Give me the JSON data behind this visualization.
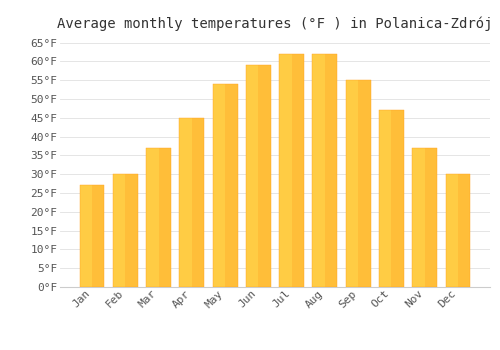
{
  "title": "Average monthly temperatures (°F ) in Polanica-Zdrój",
  "months": [
    "Jan",
    "Feb",
    "Mar",
    "Apr",
    "May",
    "Jun",
    "Jul",
    "Aug",
    "Sep",
    "Oct",
    "Nov",
    "Dec"
  ],
  "values": [
    27,
    30,
    37,
    45,
    54,
    59,
    62,
    62,
    55,
    47,
    37,
    30
  ],
  "bar_color_light": "#FFCC44",
  "bar_color_dark": "#FFA020",
  "ylim": [
    0,
    67
  ],
  "yticks": [
    0,
    5,
    10,
    15,
    20,
    25,
    30,
    35,
    40,
    45,
    50,
    55,
    60,
    65
  ],
  "ytick_labels": [
    "0°F",
    "5°F",
    "10°F",
    "15°F",
    "20°F",
    "25°F",
    "30°F",
    "35°F",
    "40°F",
    "45°F",
    "50°F",
    "55°F",
    "60°F",
    "65°F"
  ],
  "background_color": "#ffffff",
  "grid_color": "#e0e0e0",
  "title_fontsize": 10,
  "tick_fontsize": 8,
  "font_family": "monospace"
}
